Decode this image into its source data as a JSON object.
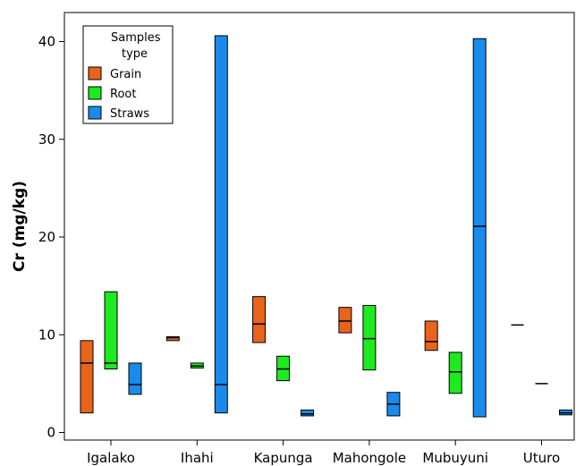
{
  "chart_data": {
    "type": "box",
    "ylabel": "Cr (mg/kg)",
    "categories": [
      "Igalako",
      "Ihahi",
      "Kapunga",
      "Mahongole",
      "Mubuyuni",
      "Uturo"
    ],
    "yticks": [
      0,
      10,
      20,
      30,
      40
    ],
    "ylim": [
      -1,
      43
    ],
    "grid": false,
    "legend": {
      "title_lines": [
        "Samples",
        "type"
      ],
      "position": "top-left"
    },
    "series": [
      {
        "name": "Grain",
        "color": "#E8641B",
        "boxes": [
          {
            "low": 2.0,
            "median": 7.1,
            "high": 9.4
          },
          {
            "low": 9.4,
            "median": 9.7,
            "high": 9.8
          },
          {
            "low": 9.2,
            "median": 11.1,
            "high": 13.9
          },
          {
            "low": 10.2,
            "median": 11.4,
            "high": 12.8
          },
          {
            "low": 8.4,
            "median": 9.3,
            "high": 11.4
          },
          {
            "low": 11.0,
            "median": 11.0,
            "high": 11.0
          }
        ]
      },
      {
        "name": "Root",
        "color": "#1DEB1F",
        "boxes": [
          {
            "low": 6.5,
            "median": 7.1,
            "high": 14.4
          },
          {
            "low": 6.6,
            "median": 6.8,
            "high": 7.1
          },
          {
            "low": 5.3,
            "median": 6.5,
            "high": 7.8
          },
          {
            "low": 6.4,
            "median": 9.6,
            "high": 13.0
          },
          {
            "low": 4.0,
            "median": 6.2,
            "high": 8.2
          },
          {
            "low": 5.0,
            "median": 5.0,
            "high": 5.0
          }
        ]
      },
      {
        "name": "Straws",
        "color": "#1A8AEB",
        "boxes": [
          {
            "low": 3.9,
            "median": 4.9,
            "high": 7.1
          },
          {
            "low": 2.0,
            "median": 4.9,
            "high": 40.6
          },
          {
            "low": 1.7,
            "median": 1.9,
            "high": 2.3
          },
          {
            "low": 1.7,
            "median": 2.9,
            "high": 4.1
          },
          {
            "low": 1.6,
            "median": 21.1,
            "high": 40.3
          },
          {
            "low": 1.8,
            "median": 2.0,
            "high": 2.3
          }
        ]
      }
    ]
  }
}
